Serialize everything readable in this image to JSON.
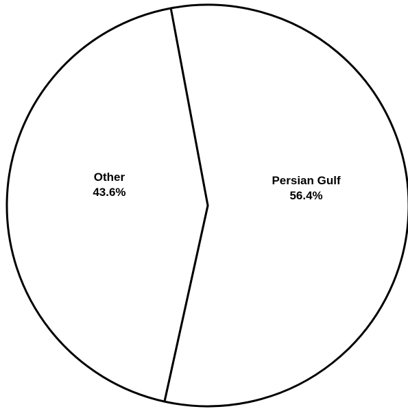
{
  "chart_data": {
    "type": "pie",
    "categories": [
      "Persian Gulf",
      "Other"
    ],
    "values": [
      56.4,
      43.6
    ],
    "value_labels": [
      "56.4%",
      "43.6%"
    ],
    "colors": [
      "#ffffff",
      "#ffffff"
    ],
    "edge_color": "#000000"
  }
}
